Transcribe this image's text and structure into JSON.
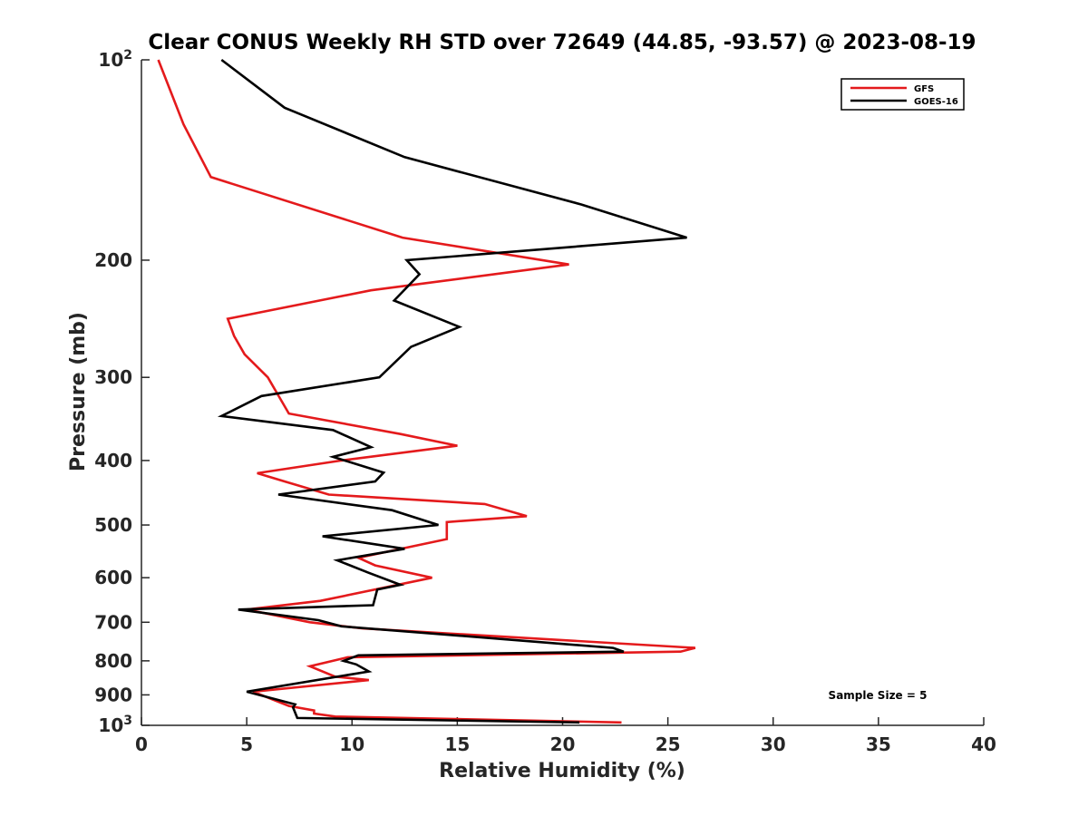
{
  "chart_data": {
    "type": "line",
    "title": "Clear CONUS Weekly RH STD over 72649 (44.85, -93.57) @ 2023-08-19",
    "xlabel": "Relative Humidity (%)",
    "ylabel": "Pressure (mb)",
    "xlim": [
      0,
      40
    ],
    "ylim": [
      100,
      1000
    ],
    "y_scale": "log",
    "y_reversed": true,
    "x_ticks": [
      "0",
      "5",
      "10",
      "15",
      "20",
      "25",
      "30",
      "35",
      "40"
    ],
    "x_tick_values": [
      0,
      5,
      10,
      15,
      20,
      25,
      30,
      35,
      40
    ],
    "y_tick_values": [
      100,
      200,
      300,
      400,
      500,
      600,
      700,
      800,
      900,
      1000
    ],
    "y_tick_labels": [
      {
        "base": "10",
        "exp": "2"
      },
      {
        "base": "200",
        "exp": ""
      },
      {
        "base": "300",
        "exp": ""
      },
      {
        "base": "400",
        "exp": ""
      },
      {
        "base": "500",
        "exp": ""
      },
      {
        "base": "600",
        "exp": ""
      },
      {
        "base": "700",
        "exp": ""
      },
      {
        "base": "800",
        "exp": ""
      },
      {
        "base": "900",
        "exp": ""
      },
      {
        "base": "10",
        "exp": "3"
      }
    ],
    "grid": false,
    "legend_position": "top-right",
    "annotation": "Sample Size = 5",
    "series": [
      {
        "name": "GFS",
        "color": "#e41a1c",
        "points": [
          [
            0.8,
            100
          ],
          [
            2.0,
            125
          ],
          [
            3.3,
            150
          ],
          [
            12.4,
            185
          ],
          [
            20.3,
            203
          ],
          [
            10.9,
            222
          ],
          [
            4.1,
            245
          ],
          [
            4.4,
            260
          ],
          [
            4.9,
            277
          ],
          [
            6.0,
            300
          ],
          [
            7.0,
            340
          ],
          [
            12.3,
            365
          ],
          [
            15.0,
            380
          ],
          [
            9.5,
            400
          ],
          [
            5.5,
            418
          ],
          [
            6.8,
            430
          ],
          [
            8.9,
            450
          ],
          [
            16.3,
            465
          ],
          [
            18.3,
            485
          ],
          [
            14.5,
            495
          ],
          [
            14.5,
            525
          ],
          [
            10.3,
            560
          ],
          [
            11.1,
            575
          ],
          [
            13.8,
            600
          ],
          [
            8.5,
            650
          ],
          [
            5.0,
            670
          ],
          [
            8.0,
            700
          ],
          [
            10.5,
            715
          ],
          [
            26.3,
            765
          ],
          [
            25.6,
            775
          ],
          [
            9.8,
            790
          ],
          [
            8.0,
            815
          ],
          [
            9.2,
            845
          ],
          [
            10.8,
            855
          ],
          [
            5.3,
            890
          ],
          [
            7.0,
            935
          ],
          [
            8.2,
            950
          ],
          [
            8.2,
            960
          ],
          [
            9.2,
            970
          ],
          [
            22.8,
            990
          ]
        ]
      },
      {
        "name": "GOES-16",
        "color": "#000000",
        "points": [
          [
            3.8,
            100
          ],
          [
            6.8,
            118
          ],
          [
            12.5,
            140
          ],
          [
            20.9,
            165
          ],
          [
            25.9,
            185
          ],
          [
            12.6,
            200
          ],
          [
            13.2,
            210
          ],
          [
            12.0,
            230
          ],
          [
            15.1,
            252
          ],
          [
            12.8,
            270
          ],
          [
            11.3,
            300
          ],
          [
            5.7,
            320
          ],
          [
            3.8,
            343
          ],
          [
            9.1,
            360
          ],
          [
            10.9,
            382
          ],
          [
            9.1,
            395
          ],
          [
            11.5,
            417
          ],
          [
            11.1,
            430
          ],
          [
            6.5,
            450
          ],
          [
            11.9,
            475
          ],
          [
            14.1,
            500
          ],
          [
            8.6,
            520
          ],
          [
            12.5,
            543
          ],
          [
            9.3,
            565
          ],
          [
            10.8,
            590
          ],
          [
            12.3,
            615
          ],
          [
            11.2,
            625
          ],
          [
            11.0,
            660
          ],
          [
            4.6,
            670
          ],
          [
            8.4,
            695
          ],
          [
            9.5,
            710
          ],
          [
            22.4,
            765
          ],
          [
            22.9,
            775
          ],
          [
            10.3,
            785
          ],
          [
            9.6,
            800
          ],
          [
            10.2,
            810
          ],
          [
            10.8,
            830
          ],
          [
            5.0,
            890
          ],
          [
            7.3,
            930
          ],
          [
            7.2,
            940
          ],
          [
            7.4,
            975
          ],
          [
            20.8,
            990
          ]
        ]
      }
    ]
  }
}
